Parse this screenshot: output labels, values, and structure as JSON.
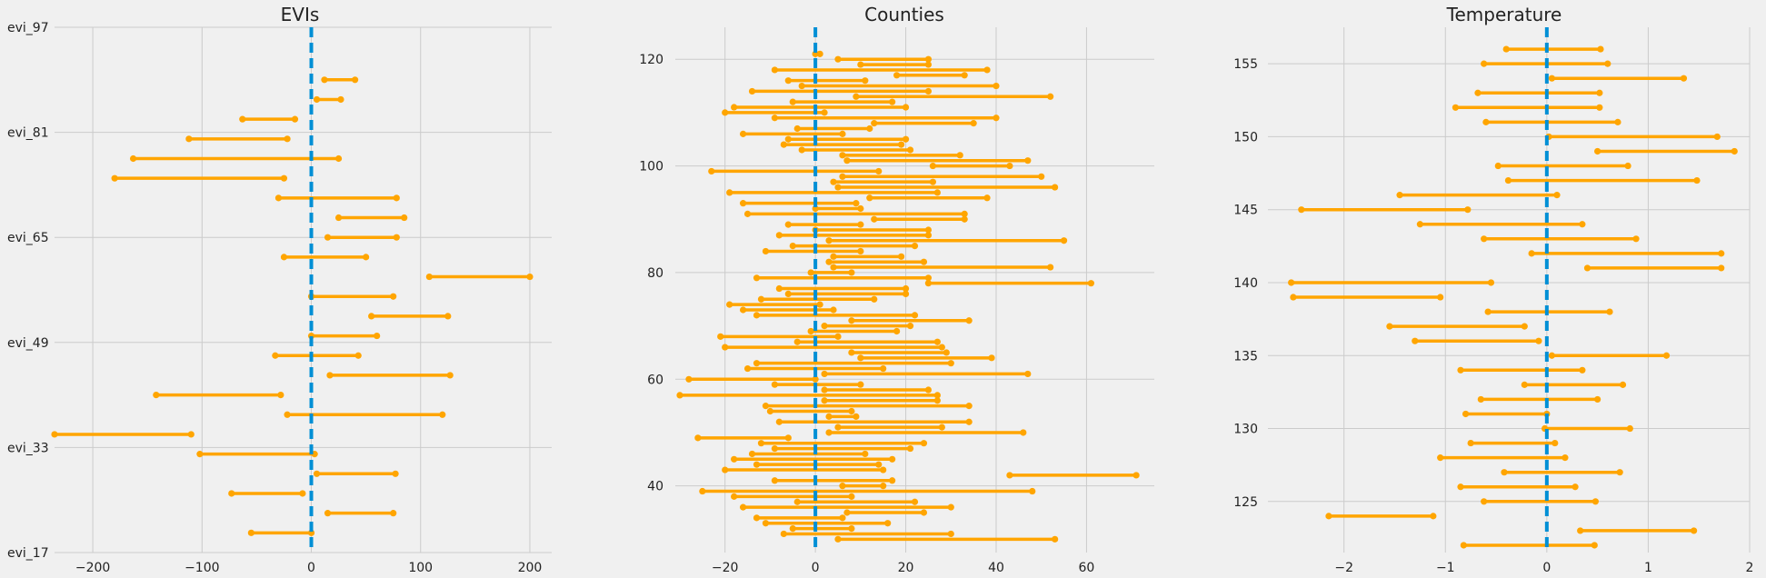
{
  "colors": {
    "background": "#f0f0f0",
    "grid": "#cbcbcb",
    "interval": "#ffa500",
    "zero_line": "#008fd5",
    "text": "#222222"
  },
  "chart_data": [
    {
      "type": "interval",
      "title": "EVIs",
      "xlim": [
        -235,
        220
      ],
      "ylim": [
        17,
        97
      ],
      "xticks": [
        -200,
        -100,
        0,
        100,
        200
      ],
      "xtick_labels": [
        "−200",
        "−100",
        "0",
        "100",
        "200"
      ],
      "yticks": [
        17,
        33,
        49,
        65,
        81,
        97
      ],
      "ytick_labels": [
        "evi_17",
        "evi_33",
        "evi_49",
        "evi_65",
        "evi_81",
        "evi_97"
      ],
      "zero_line": 0,
      "intervals": [
        {
          "y": 20,
          "lo": -55,
          "hi": 0
        },
        {
          "y": 23,
          "lo": 15,
          "hi": 75
        },
        {
          "y": 26,
          "lo": -73,
          "hi": -8
        },
        {
          "y": 29,
          "lo": 5,
          "hi": 77
        },
        {
          "y": 32,
          "lo": -102,
          "hi": 3
        },
        {
          "y": 35,
          "lo": -235,
          "hi": -110
        },
        {
          "y": 38,
          "lo": -22,
          "hi": 120
        },
        {
          "y": 41,
          "lo": -142,
          "hi": -28
        },
        {
          "y": 44,
          "lo": 17,
          "hi": 127
        },
        {
          "y": 47,
          "lo": -33,
          "hi": 43
        },
        {
          "y": 50,
          "lo": 0,
          "hi": 60
        },
        {
          "y": 53,
          "lo": 55,
          "hi": 125
        },
        {
          "y": 56,
          "lo": 0,
          "hi": 75
        },
        {
          "y": 59,
          "lo": 108,
          "hi": 200
        },
        {
          "y": 62,
          "lo": -25,
          "hi": 50
        },
        {
          "y": 65,
          "lo": 15,
          "hi": 78
        },
        {
          "y": 68,
          "lo": 25,
          "hi": 85
        },
        {
          "y": 71,
          "lo": -30,
          "hi": 78
        },
        {
          "y": 74,
          "lo": -180,
          "hi": -25
        },
        {
          "y": 77,
          "lo": -163,
          "hi": 25
        },
        {
          "y": 80,
          "lo": -112,
          "hi": -22
        },
        {
          "y": 83,
          "lo": -63,
          "hi": -15
        },
        {
          "y": 86,
          "lo": 5,
          "hi": 27
        },
        {
          "y": 89,
          "lo": 12,
          "hi": 40
        }
      ]
    },
    {
      "type": "interval",
      "title": "Counties",
      "xlim": [
        -31,
        75
      ],
      "ylim": [
        27.5,
        126
      ],
      "xticks": [
        -20,
        0,
        20,
        40,
        60
      ],
      "xtick_labels": [
        "−20",
        "0",
        "20",
        "40",
        "60"
      ],
      "yticks": [
        40,
        60,
        80,
        100,
        120
      ],
      "ytick_labels": [
        "40",
        "60",
        "80",
        "100",
        "120"
      ],
      "zero_line": 0,
      "intervals": [
        {
          "y": 30,
          "lo": 5,
          "hi": 53
        },
        {
          "y": 31,
          "lo": -7,
          "hi": 30
        },
        {
          "y": 32,
          "lo": -5,
          "hi": 8
        },
        {
          "y": 33,
          "lo": -11,
          "hi": 16
        },
        {
          "y": 34,
          "lo": -13,
          "hi": 6
        },
        {
          "y": 35,
          "lo": 7,
          "hi": 24
        },
        {
          "y": 36,
          "lo": -16,
          "hi": 30
        },
        {
          "y": 37,
          "lo": -4,
          "hi": 22
        },
        {
          "y": 38,
          "lo": -18,
          "hi": 8
        },
        {
          "y": 39,
          "lo": -25,
          "hi": 48
        },
        {
          "y": 40,
          "lo": 6,
          "hi": 15
        },
        {
          "y": 41,
          "lo": -9,
          "hi": 17
        },
        {
          "y": 42,
          "lo": 43,
          "hi": 71
        },
        {
          "y": 43,
          "lo": -20,
          "hi": 15
        },
        {
          "y": 44,
          "lo": -13,
          "hi": 14
        },
        {
          "y": 45,
          "lo": -18,
          "hi": 17
        },
        {
          "y": 46,
          "lo": -14,
          "hi": 11
        },
        {
          "y": 47,
          "lo": -9,
          "hi": 21
        },
        {
          "y": 48,
          "lo": -12,
          "hi": 24
        },
        {
          "y": 49,
          "lo": -26,
          "hi": -6
        },
        {
          "y": 50,
          "lo": 3,
          "hi": 46
        },
        {
          "y": 51,
          "lo": 5,
          "hi": 28
        },
        {
          "y": 52,
          "lo": -8,
          "hi": 34
        },
        {
          "y": 53,
          "lo": 3,
          "hi": 9
        },
        {
          "y": 54,
          "lo": -10,
          "hi": 8
        },
        {
          "y": 55,
          "lo": -11,
          "hi": 34
        },
        {
          "y": 56,
          "lo": 2,
          "hi": 27
        },
        {
          "y": 57,
          "lo": -30,
          "hi": 27
        },
        {
          "y": 58,
          "lo": 2,
          "hi": 25
        },
        {
          "y": 59,
          "lo": -9,
          "hi": 10
        },
        {
          "y": 60,
          "lo": -28,
          "hi": 0
        },
        {
          "y": 61,
          "lo": 2,
          "hi": 47
        },
        {
          "y": 62,
          "lo": -15,
          "hi": 15
        },
        {
          "y": 63,
          "lo": -13,
          "hi": 30
        },
        {
          "y": 64,
          "lo": 10,
          "hi": 39
        },
        {
          "y": 65,
          "lo": 8,
          "hi": 29
        },
        {
          "y": 66,
          "lo": -20,
          "hi": 28
        },
        {
          "y": 67,
          "lo": -4,
          "hi": 27
        },
        {
          "y": 68,
          "lo": -21,
          "hi": 5
        },
        {
          "y": 69,
          "lo": -1,
          "hi": 18
        },
        {
          "y": 70,
          "lo": 2,
          "hi": 21
        },
        {
          "y": 71,
          "lo": 8,
          "hi": 34
        },
        {
          "y": 72,
          "lo": -13,
          "hi": 22
        },
        {
          "y": 73,
          "lo": -16,
          "hi": 4
        },
        {
          "y": 74,
          "lo": -19,
          "hi": 1
        },
        {
          "y": 75,
          "lo": -12,
          "hi": 13
        },
        {
          "y": 76,
          "lo": -6,
          "hi": 20
        },
        {
          "y": 77,
          "lo": -8,
          "hi": 20
        },
        {
          "y": 78,
          "lo": 25,
          "hi": 61
        },
        {
          "y": 79,
          "lo": -13,
          "hi": 25
        },
        {
          "y": 80,
          "lo": -1,
          "hi": 8
        },
        {
          "y": 81,
          "lo": 4,
          "hi": 52
        },
        {
          "y": 82,
          "lo": 3,
          "hi": 24
        },
        {
          "y": 83,
          "lo": 4,
          "hi": 19
        },
        {
          "y": 84,
          "lo": -11,
          "hi": 10
        },
        {
          "y": 85,
          "lo": -5,
          "hi": 22
        },
        {
          "y": 86,
          "lo": 3,
          "hi": 55
        },
        {
          "y": 87,
          "lo": -8,
          "hi": 25
        },
        {
          "y": 88,
          "lo": 0,
          "hi": 25
        },
        {
          "y": 89,
          "lo": -6,
          "hi": 10
        },
        {
          "y": 90,
          "lo": 13,
          "hi": 33
        },
        {
          "y": 91,
          "lo": -15,
          "hi": 33
        },
        {
          "y": 92,
          "lo": 0,
          "hi": 10
        },
        {
          "y": 93,
          "lo": -16,
          "hi": 9
        },
        {
          "y": 94,
          "lo": 12,
          "hi": 38
        },
        {
          "y": 95,
          "lo": -19,
          "hi": 27
        },
        {
          "y": 96,
          "lo": 5,
          "hi": 53
        },
        {
          "y": 97,
          "lo": 4,
          "hi": 26
        },
        {
          "y": 98,
          "lo": 6,
          "hi": 50
        },
        {
          "y": 99,
          "lo": -23,
          "hi": 14
        },
        {
          "y": 100,
          "lo": 26,
          "hi": 43
        },
        {
          "y": 101,
          "lo": 7,
          "hi": 47
        },
        {
          "y": 102,
          "lo": 6,
          "hi": 32
        },
        {
          "y": 103,
          "lo": -3,
          "hi": 21
        },
        {
          "y": 104,
          "lo": -7,
          "hi": 19
        },
        {
          "y": 105,
          "lo": -6,
          "hi": 20
        },
        {
          "y": 106,
          "lo": -16,
          "hi": 6
        },
        {
          "y": 107,
          "lo": -4,
          "hi": 12
        },
        {
          "y": 108,
          "lo": 13,
          "hi": 35
        },
        {
          "y": 109,
          "lo": -9,
          "hi": 40
        },
        {
          "y": 110,
          "lo": -20,
          "hi": 2
        },
        {
          "y": 111,
          "lo": -18,
          "hi": 20
        },
        {
          "y": 112,
          "lo": -5,
          "hi": 17
        },
        {
          "y": 113,
          "lo": 9,
          "hi": 52
        },
        {
          "y": 114,
          "lo": -14,
          "hi": 25
        },
        {
          "y": 115,
          "lo": -3,
          "hi": 40
        },
        {
          "y": 116,
          "lo": -6,
          "hi": 11
        },
        {
          "y": 117,
          "lo": 18,
          "hi": 33
        },
        {
          "y": 118,
          "lo": -9,
          "hi": 38
        },
        {
          "y": 119,
          "lo": 10,
          "hi": 25
        },
        {
          "y": 120,
          "lo": 5,
          "hi": 25
        },
        {
          "y": 121,
          "lo": 0,
          "hi": 1
        }
      ]
    },
    {
      "type": "interval",
      "title": "Temperature",
      "xlim": [
        -2.75,
        2
      ],
      "ylim": [
        121.5,
        157.5
      ],
      "xticks": [
        -2,
        -1,
        0,
        1,
        2
      ],
      "xtick_labels": [
        "−2",
        "−1",
        "0",
        "1",
        "2"
      ],
      "yticks": [
        125,
        130,
        135,
        140,
        145,
        150,
        155
      ],
      "ytick_labels": [
        "125",
        "130",
        "135",
        "140",
        "145",
        "150",
        "155"
      ],
      "zero_line": 0,
      "intervals": [
        {
          "y": 122,
          "lo": -0.82,
          "hi": 0.47
        },
        {
          "y": 123,
          "lo": 0.33,
          "hi": 1.45
        },
        {
          "y": 124,
          "lo": -2.15,
          "hi": -1.12
        },
        {
          "y": 125,
          "lo": -0.62,
          "hi": 0.48
        },
        {
          "y": 126,
          "lo": -0.85,
          "hi": 0.28
        },
        {
          "y": 127,
          "lo": -0.42,
          "hi": 0.72
        },
        {
          "y": 128,
          "lo": -1.05,
          "hi": 0.18
        },
        {
          "y": 129,
          "lo": -0.75,
          "hi": 0.08
        },
        {
          "y": 130,
          "lo": -0.02,
          "hi": 0.82
        },
        {
          "y": 131,
          "lo": -0.8,
          "hi": 0.0
        },
        {
          "y": 132,
          "lo": -0.65,
          "hi": 0.5
        },
        {
          "y": 133,
          "lo": -0.22,
          "hi": 0.75
        },
        {
          "y": 134,
          "lo": -0.85,
          "hi": 0.35
        },
        {
          "y": 135,
          "lo": 0.05,
          "hi": 1.18
        },
        {
          "y": 136,
          "lo": -1.3,
          "hi": -0.08
        },
        {
          "y": 137,
          "lo": -1.55,
          "hi": -0.22
        },
        {
          "y": 138,
          "lo": -0.58,
          "hi": 0.62
        },
        {
          "y": 139,
          "lo": -2.5,
          "hi": -1.05
        },
        {
          "y": 140,
          "lo": -2.52,
          "hi": -0.55
        },
        {
          "y": 141,
          "lo": 0.4,
          "hi": 1.72
        },
        {
          "y": 142,
          "lo": -0.15,
          "hi": 1.72
        },
        {
          "y": 143,
          "lo": -0.62,
          "hi": 0.88
        },
        {
          "y": 144,
          "lo": -1.25,
          "hi": 0.35
        },
        {
          "y": 145,
          "lo": -2.42,
          "hi": -0.78
        },
        {
          "y": 146,
          "lo": -1.45,
          "hi": 0.1
        },
        {
          "y": 147,
          "lo": -0.38,
          "hi": 1.48
        },
        {
          "y": 148,
          "lo": -0.48,
          "hi": 0.8
        },
        {
          "y": 149,
          "lo": 0.5,
          "hi": 1.85
        },
        {
          "y": 150,
          "lo": 0.02,
          "hi": 1.68
        },
        {
          "y": 151,
          "lo": -0.6,
          "hi": 0.7
        },
        {
          "y": 152,
          "lo": -0.9,
          "hi": 0.52
        },
        {
          "y": 153,
          "lo": -0.68,
          "hi": 0.52
        },
        {
          "y": 154,
          "lo": 0.05,
          "hi": 1.35
        },
        {
          "y": 155,
          "lo": -0.62,
          "hi": 0.6
        },
        {
          "y": 156,
          "lo": -0.4,
          "hi": 0.53
        }
      ]
    }
  ]
}
